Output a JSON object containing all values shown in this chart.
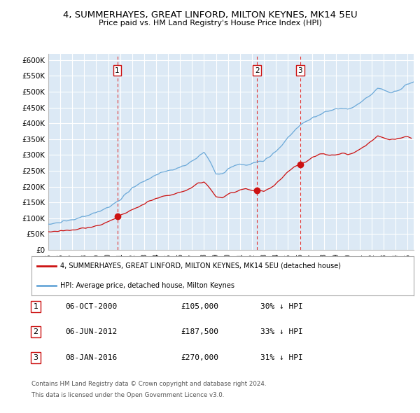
{
  "title": "4, SUMMERHAYES, GREAT LINFORD, MILTON KEYNES, MK14 5EU",
  "subtitle": "Price paid vs. HM Land Registry's House Price Index (HPI)",
  "xlim_start": 1995.0,
  "xlim_end": 2025.5,
  "ylim_min": 0,
  "ylim_max": 620000,
  "yticks": [
    0,
    50000,
    100000,
    150000,
    200000,
    250000,
    300000,
    350000,
    400000,
    450000,
    500000,
    550000,
    600000
  ],
  "ytick_labels": [
    "£0",
    "£50K",
    "£100K",
    "£150K",
    "£200K",
    "£250K",
    "£300K",
    "£350K",
    "£400K",
    "£450K",
    "£500K",
    "£550K",
    "£600K"
  ],
  "background_color": "#dce9f5",
  "grid_color": "#ffffff",
  "hpi_color": "#6aa8d8",
  "price_color": "#cc1111",
  "vline_color": "#dd3333",
  "transactions": [
    {
      "num": 1,
      "date_dec": 2000.76,
      "price": 105000,
      "label": "06-OCT-2000",
      "price_str": "£105,000",
      "below_hpi": "30% ↓ HPI"
    },
    {
      "num": 2,
      "date_dec": 2012.43,
      "price": 187500,
      "label": "06-JUN-2012",
      "price_str": "£187,500",
      "below_hpi": "33% ↓ HPI"
    },
    {
      "num": 3,
      "date_dec": 2016.02,
      "price": 270000,
      "label": "08-JAN-2016",
      "price_str": "£270,000",
      "below_hpi": "31% ↓ HPI"
    }
  ],
  "legend_line1": "4, SUMMERHAYES, GREAT LINFORD, MILTON KEYNES, MK14 5EU (detached house)",
  "legend_line2": "HPI: Average price, detached house, Milton Keynes",
  "footnote1": "Contains HM Land Registry data © Crown copyright and database right 2024.",
  "footnote2": "This data is licensed under the Open Government Licence v3.0."
}
